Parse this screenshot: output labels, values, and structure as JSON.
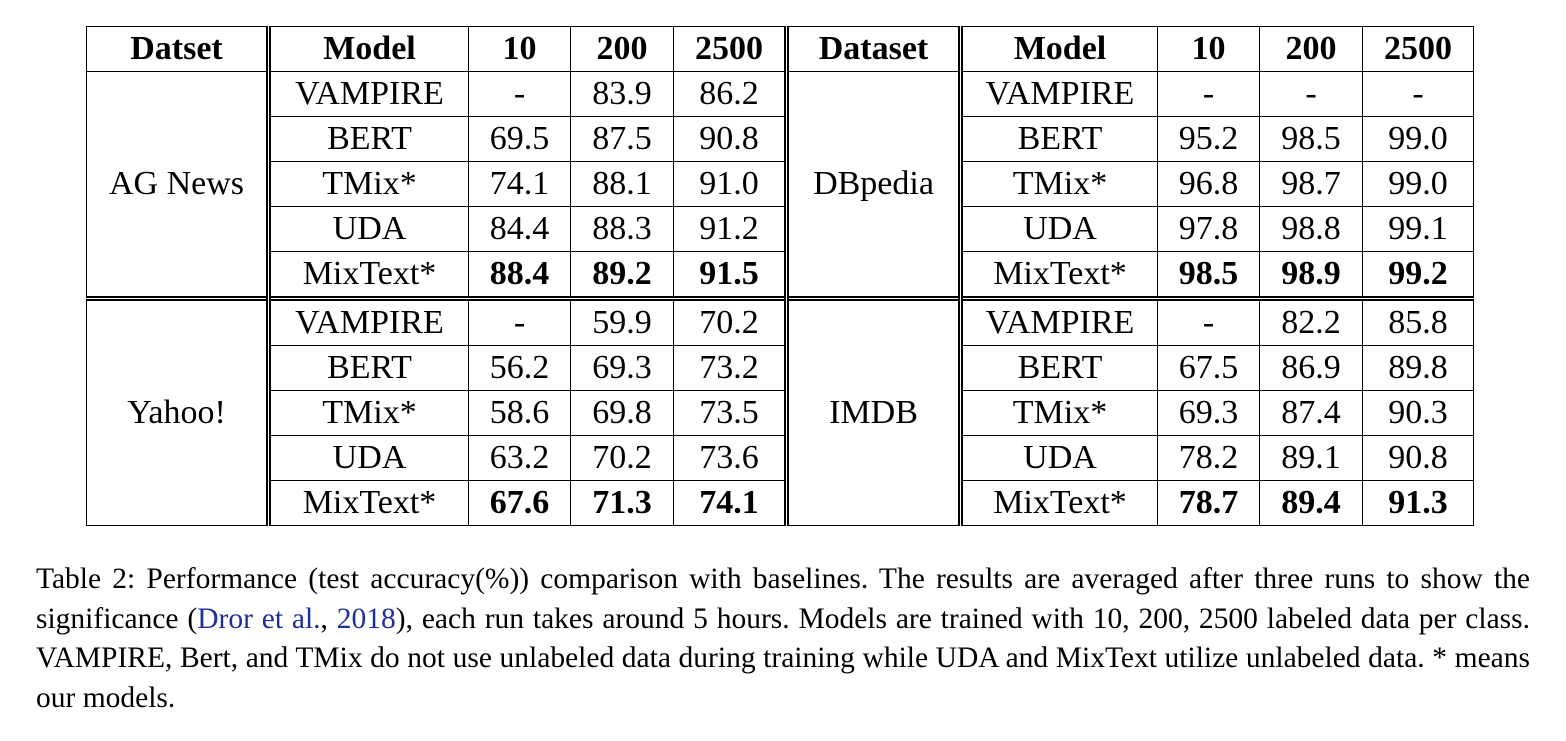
{
  "table": {
    "headers": [
      "Datset",
      "Model",
      "10",
      "200",
      "2500",
      "Dataset",
      "Model",
      "10",
      "200",
      "2500"
    ],
    "blocks": [
      {
        "left_dataset": "AG News",
        "right_dataset": "DBpedia",
        "rows": [
          {
            "left": {
              "model": "VAMPIRE",
              "v10": "-",
              "v200": "83.9",
              "v2500": "86.2"
            },
            "right": {
              "model": "VAMPIRE",
              "v10": "-",
              "v200": "-",
              "v2500": "-"
            }
          },
          {
            "left": {
              "model": "BERT",
              "v10": "69.5",
              "v200": "87.5",
              "v2500": "90.8"
            },
            "right": {
              "model": "BERT",
              "v10": "95.2",
              "v200": "98.5",
              "v2500": "99.0"
            }
          },
          {
            "left": {
              "model": "TMix*",
              "v10": "74.1",
              "v200": "88.1",
              "v2500": "91.0"
            },
            "right": {
              "model": "TMix*",
              "v10": "96.8",
              "v200": "98.7",
              "v2500": "99.0"
            }
          },
          {
            "left": {
              "model": "UDA",
              "v10": "84.4",
              "v200": "88.3",
              "v2500": "91.2"
            },
            "right": {
              "model": "UDA",
              "v10": "97.8",
              "v200": "98.8",
              "v2500": "99.1"
            }
          },
          {
            "left": {
              "model": "MixText*",
              "v10": "88.4",
              "v200": "89.2",
              "v2500": "91.5"
            },
            "right": {
              "model": "MixText*",
              "v10": "98.5",
              "v200": "98.9",
              "v2500": "99.2"
            }
          }
        ]
      },
      {
        "left_dataset": "Yahoo!",
        "right_dataset": "IMDB",
        "rows": [
          {
            "left": {
              "model": "VAMPIRE",
              "v10": "-",
              "v200": "59.9",
              "v2500": "70.2"
            },
            "right": {
              "model": "VAMPIRE",
              "v10": "-",
              "v200": "82.2",
              "v2500": "85.8"
            }
          },
          {
            "left": {
              "model": "BERT",
              "v10": "56.2",
              "v200": "69.3",
              "v2500": "73.2"
            },
            "right": {
              "model": "BERT",
              "v10": "67.5",
              "v200": "86.9",
              "v2500": "89.8"
            }
          },
          {
            "left": {
              "model": "TMix*",
              "v10": "58.6",
              "v200": "69.8",
              "v2500": "73.5"
            },
            "right": {
              "model": "TMix*",
              "v10": "69.3",
              "v200": "87.4",
              "v2500": "90.3"
            }
          },
          {
            "left": {
              "model": "UDA",
              "v10": "63.2",
              "v200": "70.2",
              "v2500": "73.6"
            },
            "right": {
              "model": "UDA",
              "v10": "78.2",
              "v200": "89.1",
              "v2500": "90.8"
            }
          },
          {
            "left": {
              "model": "MixText*",
              "v10": "67.6",
              "v200": "71.3",
              "v2500": "74.1"
            },
            "right": {
              "model": "MixText*",
              "v10": "78.7",
              "v200": "89.4",
              "v2500": "91.3"
            }
          }
        ]
      }
    ]
  },
  "caption": {
    "label": "Table 2:",
    "text_1": "Performance (test accuracy(%)) comparison with baselines. The results are averaged after three runs to show the significance (",
    "cite_author": "Dror et al.",
    "cite_sep": ", ",
    "cite_year": "2018",
    "text_2": "), each run takes around 5 hours. Models are trained with 10, 200, 2500 labeled data per class. VAMPIRE, Bert, and TMix do not use unlabeled data during training while UDA and MixText utilize unlabeled data. * means our models."
  }
}
